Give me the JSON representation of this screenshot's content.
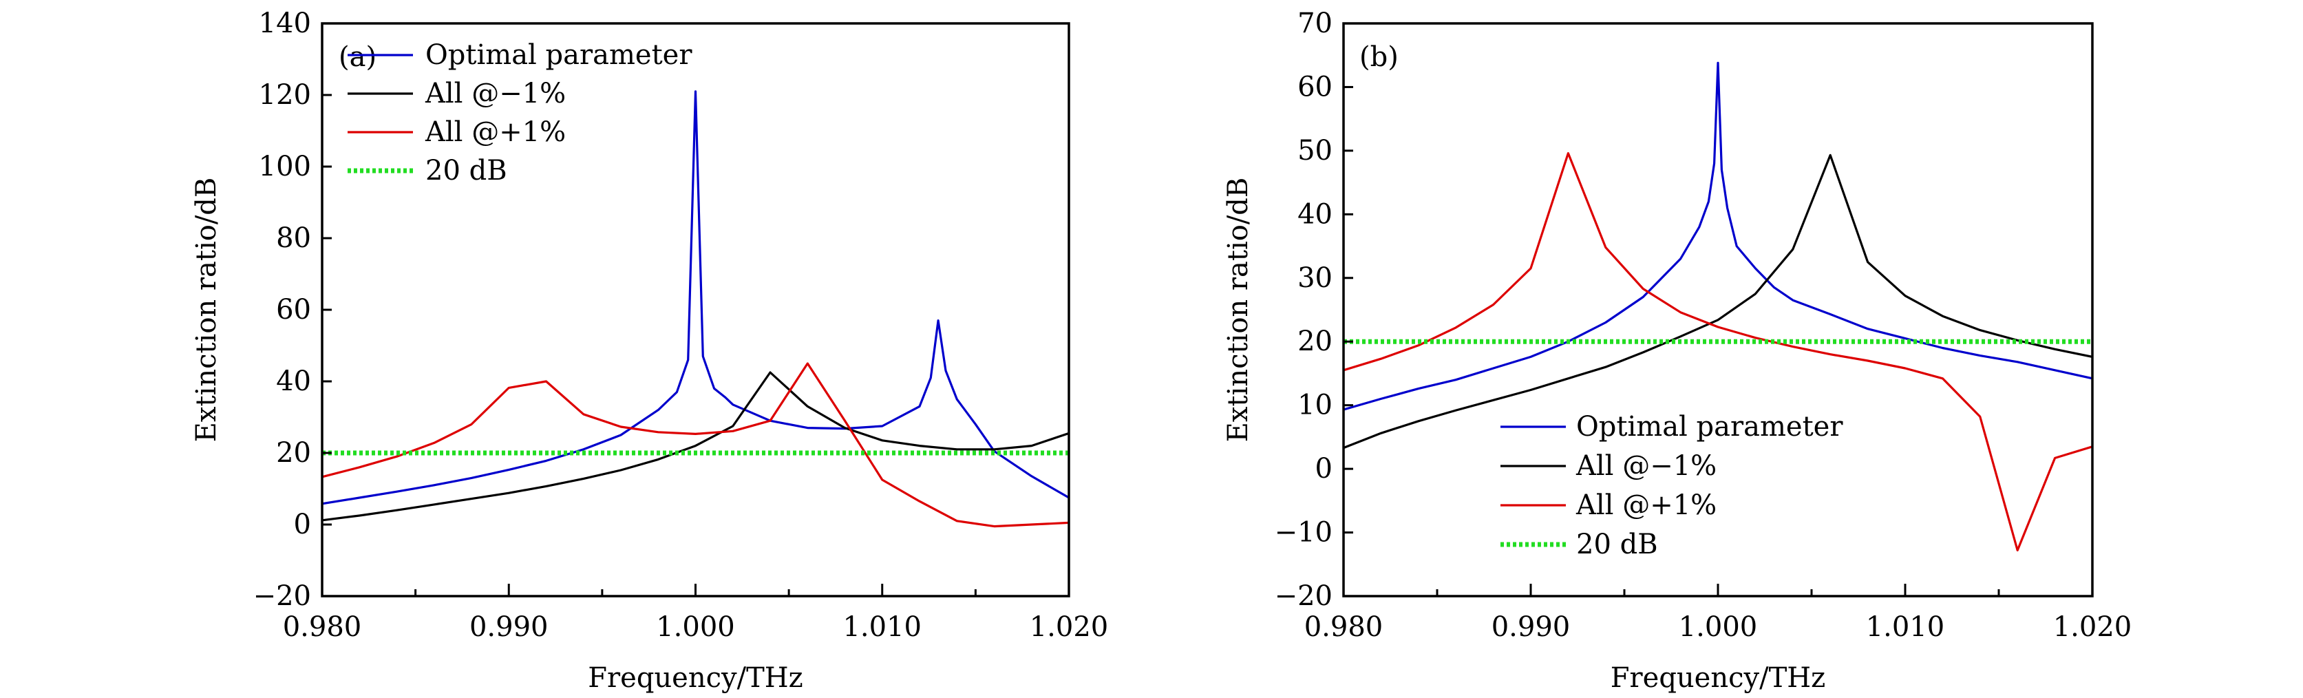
{
  "chart_data": [
    {
      "type": "line",
      "panel_label": "(a)",
      "title": "",
      "xlabel": "Frequency/THz",
      "ylabel": "Extinction ratio/dB",
      "xlim": [
        0.98,
        1.02
      ],
      "ylim": [
        -20,
        140
      ],
      "xticks": [
        0.98,
        0.99,
        1.0,
        1.01,
        1.02
      ],
      "xtick_labels": [
        "0.980",
        "0.990",
        "1.000",
        "1.010",
        "1.020"
      ],
      "yticks": [
        -20,
        0,
        20,
        40,
        60,
        80,
        100,
        120,
        140
      ],
      "ytick_labels": [
        "−20",
        "0",
        "20",
        "40",
        "60",
        "80",
        "100",
        "120",
        "140"
      ],
      "grid": false,
      "legend_position": "top-left",
      "series": [
        {
          "name": "Optimal parameter",
          "color": "#0000cc",
          "style": "solid",
          "x": [
            0.98,
            0.982,
            0.984,
            0.986,
            0.988,
            0.99,
            0.992,
            0.994,
            0.996,
            0.998,
            0.999,
            0.9996,
            1.0,
            1.0004,
            1.001,
            1.0016,
            1.002,
            1.004,
            1.006,
            1.008,
            1.01,
            1.012,
            1.0126,
            1.013,
            1.0134,
            1.014,
            1.015,
            1.016,
            1.018,
            1.02
          ],
          "y": [
            5.8,
            7.5,
            9.2,
            11,
            13,
            15.3,
            17.8,
            21,
            25,
            32,
            37,
            46,
            121,
            47,
            38,
            35.5,
            33.5,
            29,
            27,
            26.8,
            27.5,
            33,
            41,
            57,
            43,
            35,
            28,
            20.5,
            13.5,
            7.5
          ]
        },
        {
          "name": "All @−1%",
          "color": "#000000",
          "style": "solid",
          "x": [
            0.98,
            0.982,
            0.984,
            0.986,
            0.988,
            0.99,
            0.992,
            0.994,
            0.996,
            0.998,
            1.0,
            1.002,
            1.004,
            1.006,
            1.008,
            1.01,
            1.012,
            1.014,
            1.016,
            1.018,
            1.02
          ],
          "y": [
            1.2,
            2.5,
            4,
            5.6,
            7.2,
            8.8,
            10.7,
            12.8,
            15.2,
            18.2,
            22,
            27.5,
            42.5,
            33,
            27,
            23.5,
            22,
            21,
            21,
            22,
            25.5
          ]
        },
        {
          "name": "All @+1%",
          "color": "#dd0000",
          "style": "solid",
          "x": [
            0.98,
            0.982,
            0.984,
            0.986,
            0.988,
            0.99,
            0.992,
            0.994,
            0.996,
            0.998,
            1.0,
            1.002,
            1.004,
            1.006,
            1.008,
            1.01,
            1.012,
            1.014,
            1.016,
            1.018,
            1.02
          ],
          "y": [
            13.3,
            16,
            19,
            22.8,
            28,
            38.2,
            40,
            30.8,
            27.3,
            25.8,
            25.3,
            26.1,
            29,
            45,
            29,
            12.5,
            6.5,
            1,
            -0.5,
            0,
            0.5
          ]
        },
        {
          "name": "20 dB",
          "color": "#22dd22",
          "style": "dotted",
          "x": [
            0.98,
            1.02
          ],
          "y": [
            20,
            20
          ]
        }
      ]
    },
    {
      "type": "line",
      "panel_label": "(b)",
      "title": "",
      "xlabel": "Frequency/THz",
      "ylabel": "Extinction ratio/dB",
      "xlim": [
        0.98,
        1.02
      ],
      "ylim": [
        -20,
        70
      ],
      "xticks": [
        0.98,
        0.99,
        1.0,
        1.01,
        1.02
      ],
      "xtick_labels": [
        "0.980",
        "0.990",
        "1.000",
        "1.010",
        "1.020"
      ],
      "yticks": [
        -20,
        -10,
        0,
        10,
        20,
        30,
        40,
        50,
        60,
        70
      ],
      "ytick_labels": [
        "−20",
        "−10",
        "0",
        "10",
        "20",
        "30",
        "40",
        "50",
        "60",
        "70"
      ],
      "grid": false,
      "legend_position": "bottom-center",
      "series": [
        {
          "name": "Optimal parameter",
          "color": "#0000cc",
          "style": "solid",
          "x": [
            0.98,
            0.982,
            0.984,
            0.986,
            0.988,
            0.99,
            0.992,
            0.994,
            0.995,
            0.996,
            0.997,
            0.998,
            0.999,
            0.9995,
            0.9998,
            1.0,
            1.0002,
            1.0005,
            1.001,
            1.002,
            1.003,
            1.004,
            1.006,
            1.008,
            1.01,
            1.012,
            1.014,
            1.016,
            1.018,
            1.02
          ],
          "y": [
            9.3,
            11,
            12.6,
            14,
            15.8,
            17.6,
            20,
            23,
            25,
            27,
            30,
            33,
            38,
            42,
            48,
            63.8,
            47,
            41,
            35,
            31.5,
            28.5,
            26.5,
            24.3,
            22,
            20.5,
            19,
            17.8,
            16.8,
            15.5,
            14.2
          ]
        },
        {
          "name": "All @−1%",
          "color": "#000000",
          "style": "solid",
          "x": [
            0.98,
            0.982,
            0.984,
            0.986,
            0.988,
            0.99,
            0.992,
            0.994,
            0.996,
            0.998,
            1.0,
            1.002,
            1.004,
            1.006,
            1.008,
            1.01,
            1.012,
            1.014,
            1.016,
            1.018,
            1.02
          ],
          "y": [
            3.3,
            5.6,
            7.5,
            9.2,
            10.8,
            12.4,
            14.2,
            16,
            18.3,
            20.8,
            23.4,
            27.5,
            34.5,
            49.3,
            32.5,
            27.2,
            24,
            21.8,
            20.2,
            18.8,
            17.6
          ]
        },
        {
          "name": "All @+1%",
          "color": "#dd0000",
          "style": "solid",
          "x": [
            0.98,
            0.982,
            0.984,
            0.986,
            0.988,
            0.99,
            0.992,
            0.994,
            0.996,
            0.998,
            1.0,
            1.002,
            1.004,
            1.006,
            1.008,
            1.01,
            1.012,
            1.014,
            1.016,
            1.018,
            1.02
          ],
          "y": [
            15.5,
            17.3,
            19.4,
            22.2,
            25.8,
            31.5,
            49.6,
            34.8,
            28.3,
            24.6,
            22.3,
            20.6,
            19.2,
            18,
            17,
            15.8,
            14.2,
            8.2,
            -12.8,
            1.7,
            3.5
          ]
        },
        {
          "name": "20 dB",
          "color": "#22dd22",
          "style": "dotted",
          "x": [
            0.98,
            1.02
          ],
          "y": [
            20,
            20
          ]
        }
      ]
    }
  ]
}
